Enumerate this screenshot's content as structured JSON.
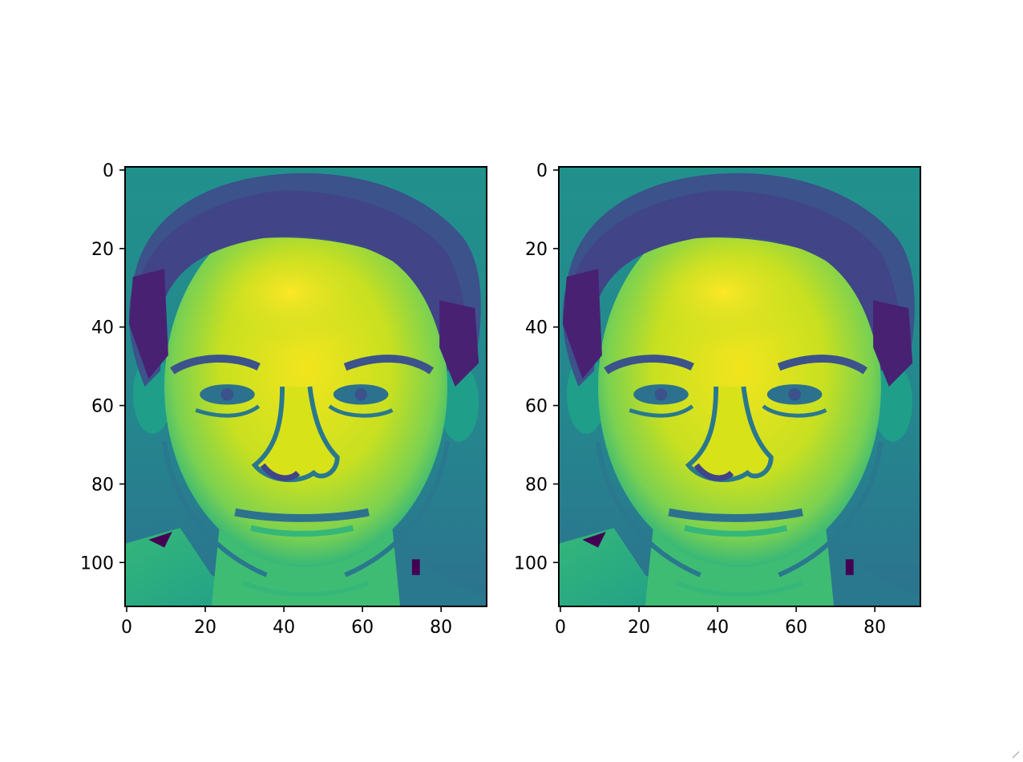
{
  "chart_data": [
    {
      "type": "heatmap",
      "subject": "grayscale face image rendered with viridis colormap",
      "colormap": "viridis",
      "image_size": {
        "width": 92,
        "height": 112
      },
      "xlim": [
        0,
        92
      ],
      "ylim": [
        112,
        0
      ],
      "xticks": [
        0,
        20,
        40,
        60,
        80
      ],
      "yticks": [
        0,
        20,
        40,
        60,
        80,
        100
      ],
      "xtick_labels": [
        "0",
        "20",
        "40",
        "60",
        "80"
      ],
      "ytick_labels": [
        "0",
        "20",
        "40",
        "60",
        "80",
        "100"
      ],
      "grid": false
    },
    {
      "type": "heatmap",
      "subject": "grayscale face image rendered with viridis colormap",
      "colormap": "viridis",
      "image_size": {
        "width": 92,
        "height": 112
      },
      "xlim": [
        0,
        92
      ],
      "ylim": [
        112,
        0
      ],
      "xticks": [
        0,
        20,
        40,
        60,
        80
      ],
      "yticks": [
        0,
        20,
        40,
        60,
        80,
        100
      ],
      "xtick_labels": [
        "0",
        "20",
        "40",
        "60",
        "80"
      ],
      "ytick_labels": [
        "0",
        "20",
        "40",
        "60",
        "80",
        "100"
      ],
      "grid": false
    }
  ],
  "colors": {
    "viridis_dark": "#3b1f6f",
    "viridis_mid": "#21918c",
    "viridis_light": "#5ec962",
    "viridis_bright": "#fde725",
    "axes_edge": "#000000"
  }
}
